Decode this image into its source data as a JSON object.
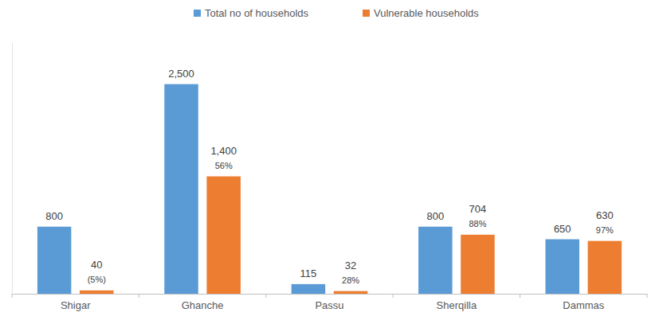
{
  "chart_data": {
    "type": "bar",
    "categories": [
      "Shigar",
      "Ghanche",
      "Passu",
      "Sherqilla",
      "Dammas"
    ],
    "series": [
      {
        "name": "Total no of households",
        "color": "#5b9bd5",
        "values": [
          800,
          2500,
          115,
          800,
          650
        ],
        "value_labels": [
          "800",
          "2,500",
          "115",
          "800",
          "650"
        ]
      },
      {
        "name": "Vulnerable households",
        "color": "#ed7d31",
        "values": [
          40,
          1400,
          32,
          704,
          630
        ],
        "value_labels": [
          "40",
          "1,400",
          "32",
          "704",
          "630"
        ],
        "percent_labels": [
          "(5%)",
          "56%",
          "28%",
          "88%",
          "97%"
        ]
      }
    ],
    "ylim": [
      0,
      3000
    ],
    "grid": false,
    "legend": "top",
    "data_labels": true,
    "tick_labels": "x"
  }
}
